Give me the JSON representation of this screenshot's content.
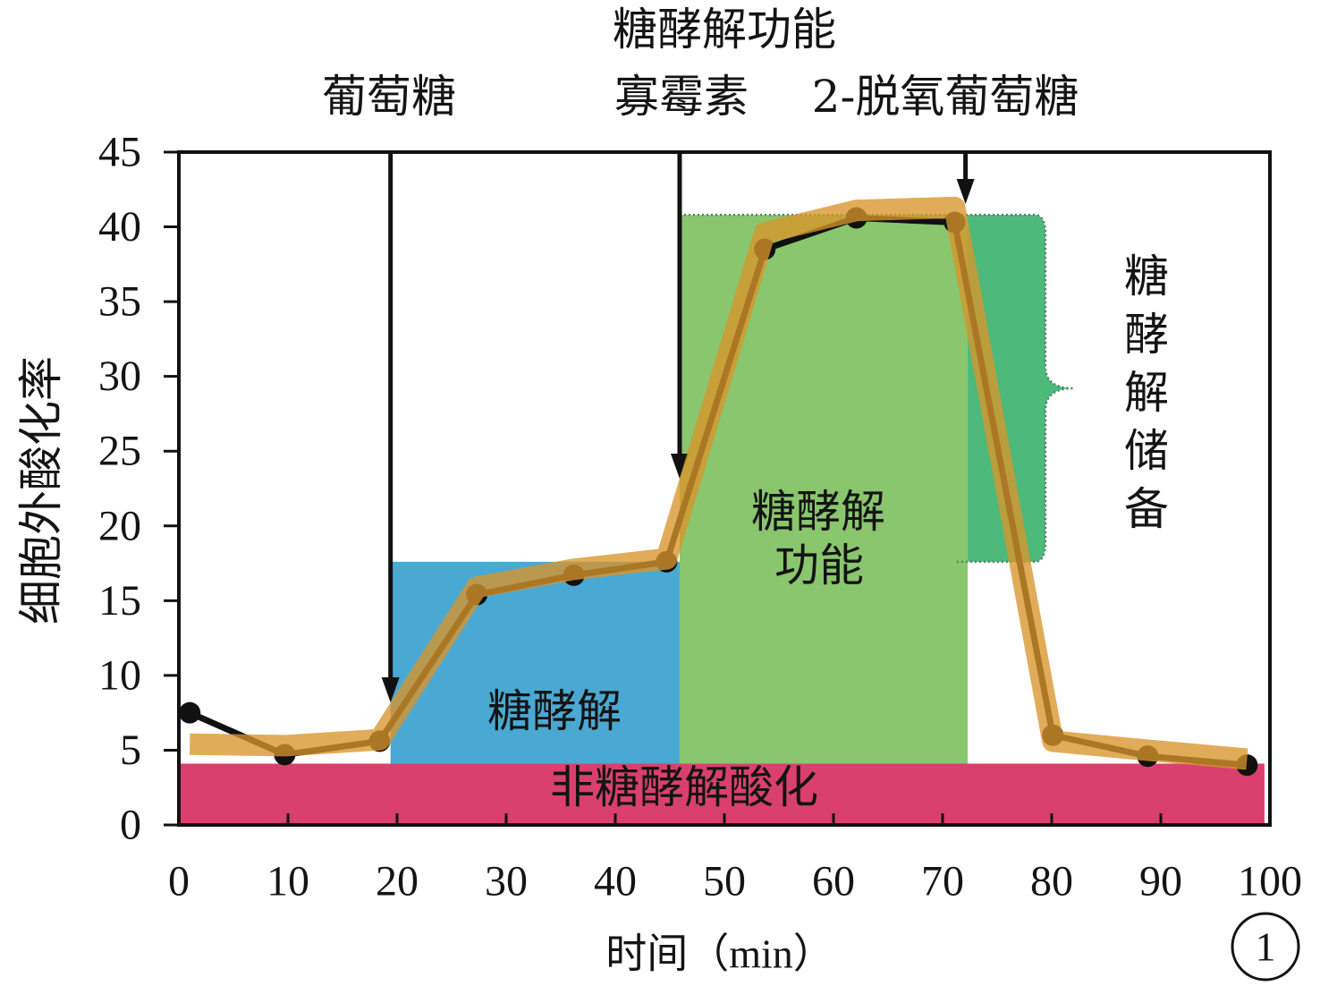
{
  "chart_data": {
    "type": "line",
    "title": "糖酵解功能",
    "xlabel": "时间（min）",
    "ylabel": "细胞外酸化率",
    "xlim": [
      0,
      100
    ],
    "ylim": [
      0,
      45
    ],
    "xticks": [
      0,
      10,
      20,
      30,
      40,
      50,
      60,
      70,
      80,
      90,
      100
    ],
    "yticks": [
      0,
      5,
      10,
      15,
      20,
      25,
      30,
      35,
      40,
      45
    ],
    "grid": false,
    "x": [
      1,
      9.7,
      18.4,
      27.3,
      36.2,
      44.7,
      53.7,
      62.1,
      71.1,
      80.1,
      88.8,
      97.9
    ],
    "series": [
      {
        "color": "#111111",
        "markers": true,
        "values": [
          7.5,
          4.7,
          5.6,
          15.4,
          16.7,
          17.6,
          38.5,
          40.6,
          40.3,
          6.0,
          4.6,
          4.0
        ]
      },
      {
        "color": "#d9952b",
        "markers": false,
        "values": [
          5.4,
          5.3,
          5.7,
          15.9,
          17.1,
          17.8,
          39.6,
          41.1,
          41.3,
          5.6,
          5.0,
          4.4
        ]
      }
    ],
    "injections": [
      {
        "label": "葡萄糖",
        "x": 19.4
      },
      {
        "label": "寡霉素",
        "x": 45.9
      },
      {
        "label": "2-脱氧葡萄糖",
        "x": 72.1
      }
    ],
    "regions": [
      {
        "label": "非糖酵解酸化",
        "x": [
          0,
          99.5
        ],
        "y": [
          0,
          4.1
        ],
        "color": "#da406d"
      },
      {
        "label": "糖酵解",
        "x": [
          19.4,
          45.9
        ],
        "y": [
          4.1,
          17.6
        ],
        "color": "#4aa9d2"
      },
      {
        "label_lines": [
          "糖酵解",
          "功能"
        ],
        "x": [
          45.9,
          72.3
        ],
        "y": [
          4.1,
          40.8
        ],
        "color": "#89c66e"
      },
      {
        "label": "糖酵解储备",
        "x": [
          72.3,
          79.1
        ],
        "y": [
          17.6,
          40.8
        ],
        "color": "#4db97b",
        "border_color": "#55806a"
      }
    ]
  },
  "panel_label": "1"
}
